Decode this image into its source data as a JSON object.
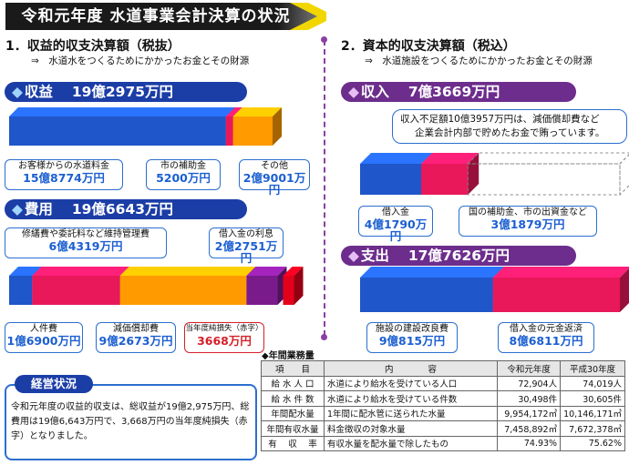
{
  "title": "令和元年度  水道事業会計決算の状況",
  "colors": {
    "blue": "#1f56c9",
    "pink": "#e8185a",
    "orange": "#ff9a00",
    "purple": "#7a1b8c",
    "red": "#e3001b",
    "header": "#1b3da6"
  },
  "left": {
    "heading": "1．収益的収支決算額（税抜）",
    "sub": "⇒　水道水をつくるためにかかったお金とその財源",
    "income": {
      "pill_icon": "◆",
      "pill": "収益　 19億2975万円",
      "segments": [
        {
          "label": "お客様からの水道料金",
          "amount": "15億8774万円",
          "value": 158774
        },
        {
          "label": "市の補助金",
          "amount": "5200万円",
          "value": 5200
        },
        {
          "label": "その他",
          "amount": "2億9001万円",
          "value": 29001
        }
      ]
    },
    "expense": {
      "pill_icon": "◆",
      "pill": "費用　 19億6643万円",
      "segments": [
        {
          "label": "人件費",
          "amount": "1億6900万円",
          "value": 16900
        },
        {
          "label": "修繕費や委託料など維持管理費",
          "amount": "6億4319万円",
          "value": 64319
        },
        {
          "label": "減価償却費",
          "amount": "9億2673万円",
          "value": 92673
        },
        {
          "label": "借入金の利息",
          "amount": "2億2751万円",
          "value": 22751
        }
      ],
      "loss": {
        "label": "当年度純損失（赤字）",
        "amount": "3668万円",
        "value": 3668
      }
    }
  },
  "right": {
    "heading": "2．資本的収支決算額（税込）",
    "sub": "⇒　水道施設をつくるためにかかったお金とその財源",
    "income": {
      "pill_icon": "◆",
      "pill": "収入　 7億3669万円",
      "note_line1": "収入不足額10億3957万円は、減価償却費など",
      "note_line2": "企業会計内部で貯めたお金で賄っています。",
      "segments": [
        {
          "label": "借入金",
          "amount": "4億1790万円",
          "value": 41790
        },
        {
          "label": "国の補助金、市の出資金など",
          "amount": "3億1879万円",
          "value": 31879
        }
      ]
    },
    "expense": {
      "pill_icon": "◆",
      "pill": "支出　 17億7626万円",
      "segments": [
        {
          "label": "施設の建設改良費",
          "amount": "9億815万円",
          "value": 90815
        },
        {
          "label": "借入金の元金返済",
          "amount": "8億6811万円",
          "value": 86811
        }
      ]
    }
  },
  "status": {
    "title": "経営状況",
    "text": "令和元年度の収益的収支は、総収益が19億2,975万円、総費用は19億6,643万円で、3,668万円の当年度純損失（赤字）となりました。"
  },
  "table": {
    "title": "◆年間業務量",
    "headers": [
      "項　　目",
      "内　　　　容",
      "令和元年度",
      "平成30年度"
    ],
    "rows": [
      [
        "給 水 人 口",
        "水道により給水を受けている人口",
        "72,904人",
        "74,019人"
      ],
      [
        "給 水 件 数",
        "水道により給水を受けている件数",
        "30,498件",
        "30,605件"
      ],
      [
        "年間配水量",
        "1年間に配水管に送られた水量",
        "9,954,172㎥",
        "10,146,171㎥"
      ],
      [
        "年間有収水量",
        "料金徴収の対象水量",
        "7,458,892㎥",
        "7,672,378㎥"
      ],
      [
        "有　 収　 率",
        "有収水量を配水量で除したもの",
        "74.93%",
        "75.62%"
      ]
    ]
  }
}
